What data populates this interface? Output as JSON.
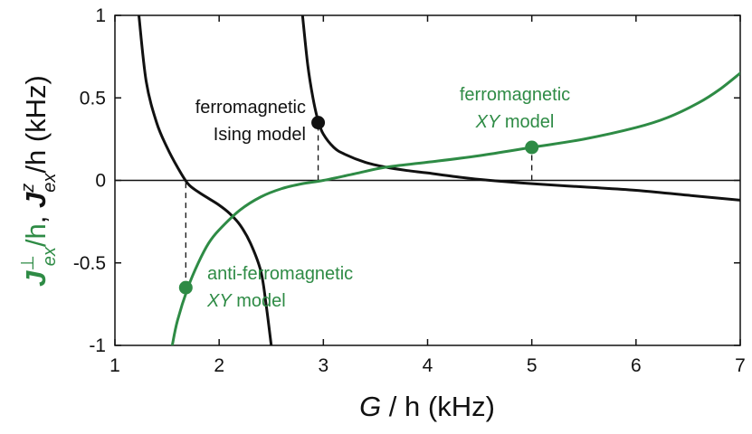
{
  "colors": {
    "black_curve": "#111111",
    "green_curve": "#2e8b45",
    "axis": "#111111"
  },
  "chart_data": {
    "type": "line",
    "title": "",
    "xlabel": {
      "italic": "G",
      "rest": " / h (kHz)"
    },
    "ylabel": {
      "green_J": "J",
      "green_sup": "⊥",
      "green_sub": "ex",
      "green_rest": "/h",
      "comma": ", ",
      "black_J": "J",
      "black_sup": "z",
      "black_sub": "ex",
      "black_rest": "/h (kHz)"
    },
    "xlim": [
      1,
      7
    ],
    "ylim": [
      -1,
      1
    ],
    "x_ticks": [
      1,
      2,
      3,
      4,
      5,
      6,
      7
    ],
    "x_tick_labels": [
      "1",
      "2",
      "3",
      "4",
      "5",
      "6",
      "7"
    ],
    "y_ticks": [
      -1,
      -0.5,
      0,
      0.5,
      1
    ],
    "y_tick_labels": [
      "-1",
      "-0.5",
      "0",
      "0.5",
      "1"
    ],
    "series": [
      {
        "color": "#111111",
        "x": [
          1.23,
          1.3,
          1.4,
          1.5,
          1.6,
          1.7,
          1.8,
          1.9,
          2.0,
          2.1,
          2.2,
          2.3,
          2.4,
          2.45,
          2.5
        ],
        "y": [
          1.0,
          0.6,
          0.35,
          0.2,
          0.08,
          -0.02,
          -0.07,
          -0.11,
          -0.15,
          -0.2,
          -0.27,
          -0.38,
          -0.55,
          -0.75,
          -1.0
        ]
      },
      {
        "color": "#111111",
        "x": [
          2.8,
          2.85,
          2.9,
          2.95,
          3.0,
          3.1,
          3.2,
          3.4,
          3.6,
          3.8,
          4.0,
          4.3,
          4.6,
          5.0,
          5.5,
          6.0,
          6.5,
          7.0
        ],
        "y": [
          1.0,
          0.7,
          0.5,
          0.36,
          0.28,
          0.2,
          0.16,
          0.11,
          0.08,
          0.06,
          0.045,
          0.02,
          0.0,
          -0.02,
          -0.04,
          -0.06,
          -0.09,
          -0.12
        ]
      },
      {
        "color": "#2e8b45",
        "x": [
          1.55,
          1.6,
          1.7,
          1.8,
          1.9,
          2.0,
          2.2,
          2.4,
          2.6,
          2.8,
          3.0,
          3.3,
          3.6,
          4.0,
          4.5,
          5.0,
          5.5,
          6.0,
          6.3,
          6.6,
          6.8,
          7.0
        ],
        "y": [
          -1.0,
          -0.85,
          -0.65,
          -0.5,
          -0.38,
          -0.3,
          -0.18,
          -0.1,
          -0.05,
          -0.02,
          0.0,
          0.04,
          0.08,
          0.11,
          0.15,
          0.2,
          0.25,
          0.32,
          0.38,
          0.47,
          0.55,
          0.65
        ]
      }
    ],
    "points": [
      {
        "x": 1.68,
        "y": -0.65,
        "color": "#2e8b45"
      },
      {
        "x": 2.95,
        "y": 0.35,
        "color": "#111111"
      },
      {
        "x": 5.0,
        "y": 0.2,
        "color": "#2e8b45"
      }
    ],
    "dashed_lines": [
      {
        "x": 1.68,
        "y_from": -0.65,
        "y_to": 0
      },
      {
        "x": 2.95,
        "y_from": 0,
        "y_to": 0.35
      },
      {
        "x": 5.0,
        "y_from": 0,
        "y_to": 0.2
      }
    ],
    "zero_line": 0,
    "annotations": {
      "ising_line1": "ferromagnetic",
      "ising_line2": "Ising model",
      "xy_ferro_line1": "ferromagnetic",
      "xy_ferro_italic": "XY",
      "xy_ferro_rest": " model",
      "xy_anti_line1": "anti-ferromagnetic",
      "xy_anti_italic": "XY",
      "xy_anti_rest": " model"
    },
    "grid": false,
    "legend": "none"
  }
}
